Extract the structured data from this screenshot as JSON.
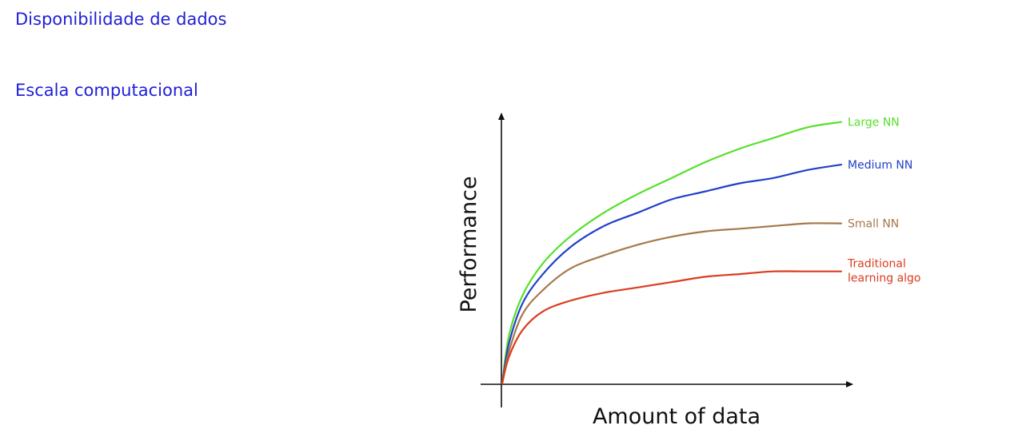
{
  "links": [
    {
      "label": "Disponibilidade de dados"
    },
    {
      "label": "Escala computacional"
    }
  ],
  "chart_data": {
    "type": "line",
    "title": "",
    "xlabel": "Amount of data",
    "ylabel": "Performance",
    "ticks": false,
    "grid": false,
    "legend": "labels at right end of each line",
    "xlim": [
      0,
      1
    ],
    "ylim": [
      0,
      1
    ],
    "series": [
      {
        "name": "Large NN",
        "color": "#55e02a",
        "label_lines": [
          "Large NN"
        ],
        "x": [
          0,
          0.02,
          0.06,
          0.12,
          0.2,
          0.3,
          0.4,
          0.5,
          0.6,
          0.7,
          0.8,
          0.9,
          1.0
        ],
        "y": [
          0,
          0.18,
          0.33,
          0.45,
          0.55,
          0.64,
          0.71,
          0.77,
          0.83,
          0.88,
          0.92,
          0.96,
          0.98
        ]
      },
      {
        "name": "Medium NN",
        "color": "#2140c8",
        "label_lines": [
          "Medium NN"
        ],
        "x": [
          0,
          0.02,
          0.06,
          0.12,
          0.2,
          0.3,
          0.4,
          0.5,
          0.6,
          0.7,
          0.8,
          0.9,
          1.0
        ],
        "y": [
          0,
          0.15,
          0.3,
          0.41,
          0.51,
          0.59,
          0.64,
          0.69,
          0.72,
          0.75,
          0.77,
          0.8,
          0.82
        ]
      },
      {
        "name": "Small NN",
        "color": "#a8784a",
        "label_lines": [
          "Small NN"
        ],
        "x": [
          0,
          0.02,
          0.06,
          0.12,
          0.2,
          0.3,
          0.4,
          0.5,
          0.6,
          0.7,
          0.8,
          0.9,
          1.0
        ],
        "y": [
          0,
          0.12,
          0.26,
          0.35,
          0.43,
          0.48,
          0.52,
          0.55,
          0.57,
          0.58,
          0.59,
          0.6,
          0.6
        ]
      },
      {
        "name": "Traditional learning algo",
        "color": "#dc3b1e",
        "label_lines": [
          "Traditional",
          "learning algo"
        ],
        "x": [
          0,
          0.02,
          0.06,
          0.12,
          0.2,
          0.3,
          0.4,
          0.5,
          0.6,
          0.7,
          0.8,
          0.9,
          1.0
        ],
        "y": [
          0,
          0.1,
          0.2,
          0.27,
          0.31,
          0.34,
          0.36,
          0.38,
          0.4,
          0.41,
          0.42,
          0.42,
          0.42
        ]
      }
    ]
  }
}
